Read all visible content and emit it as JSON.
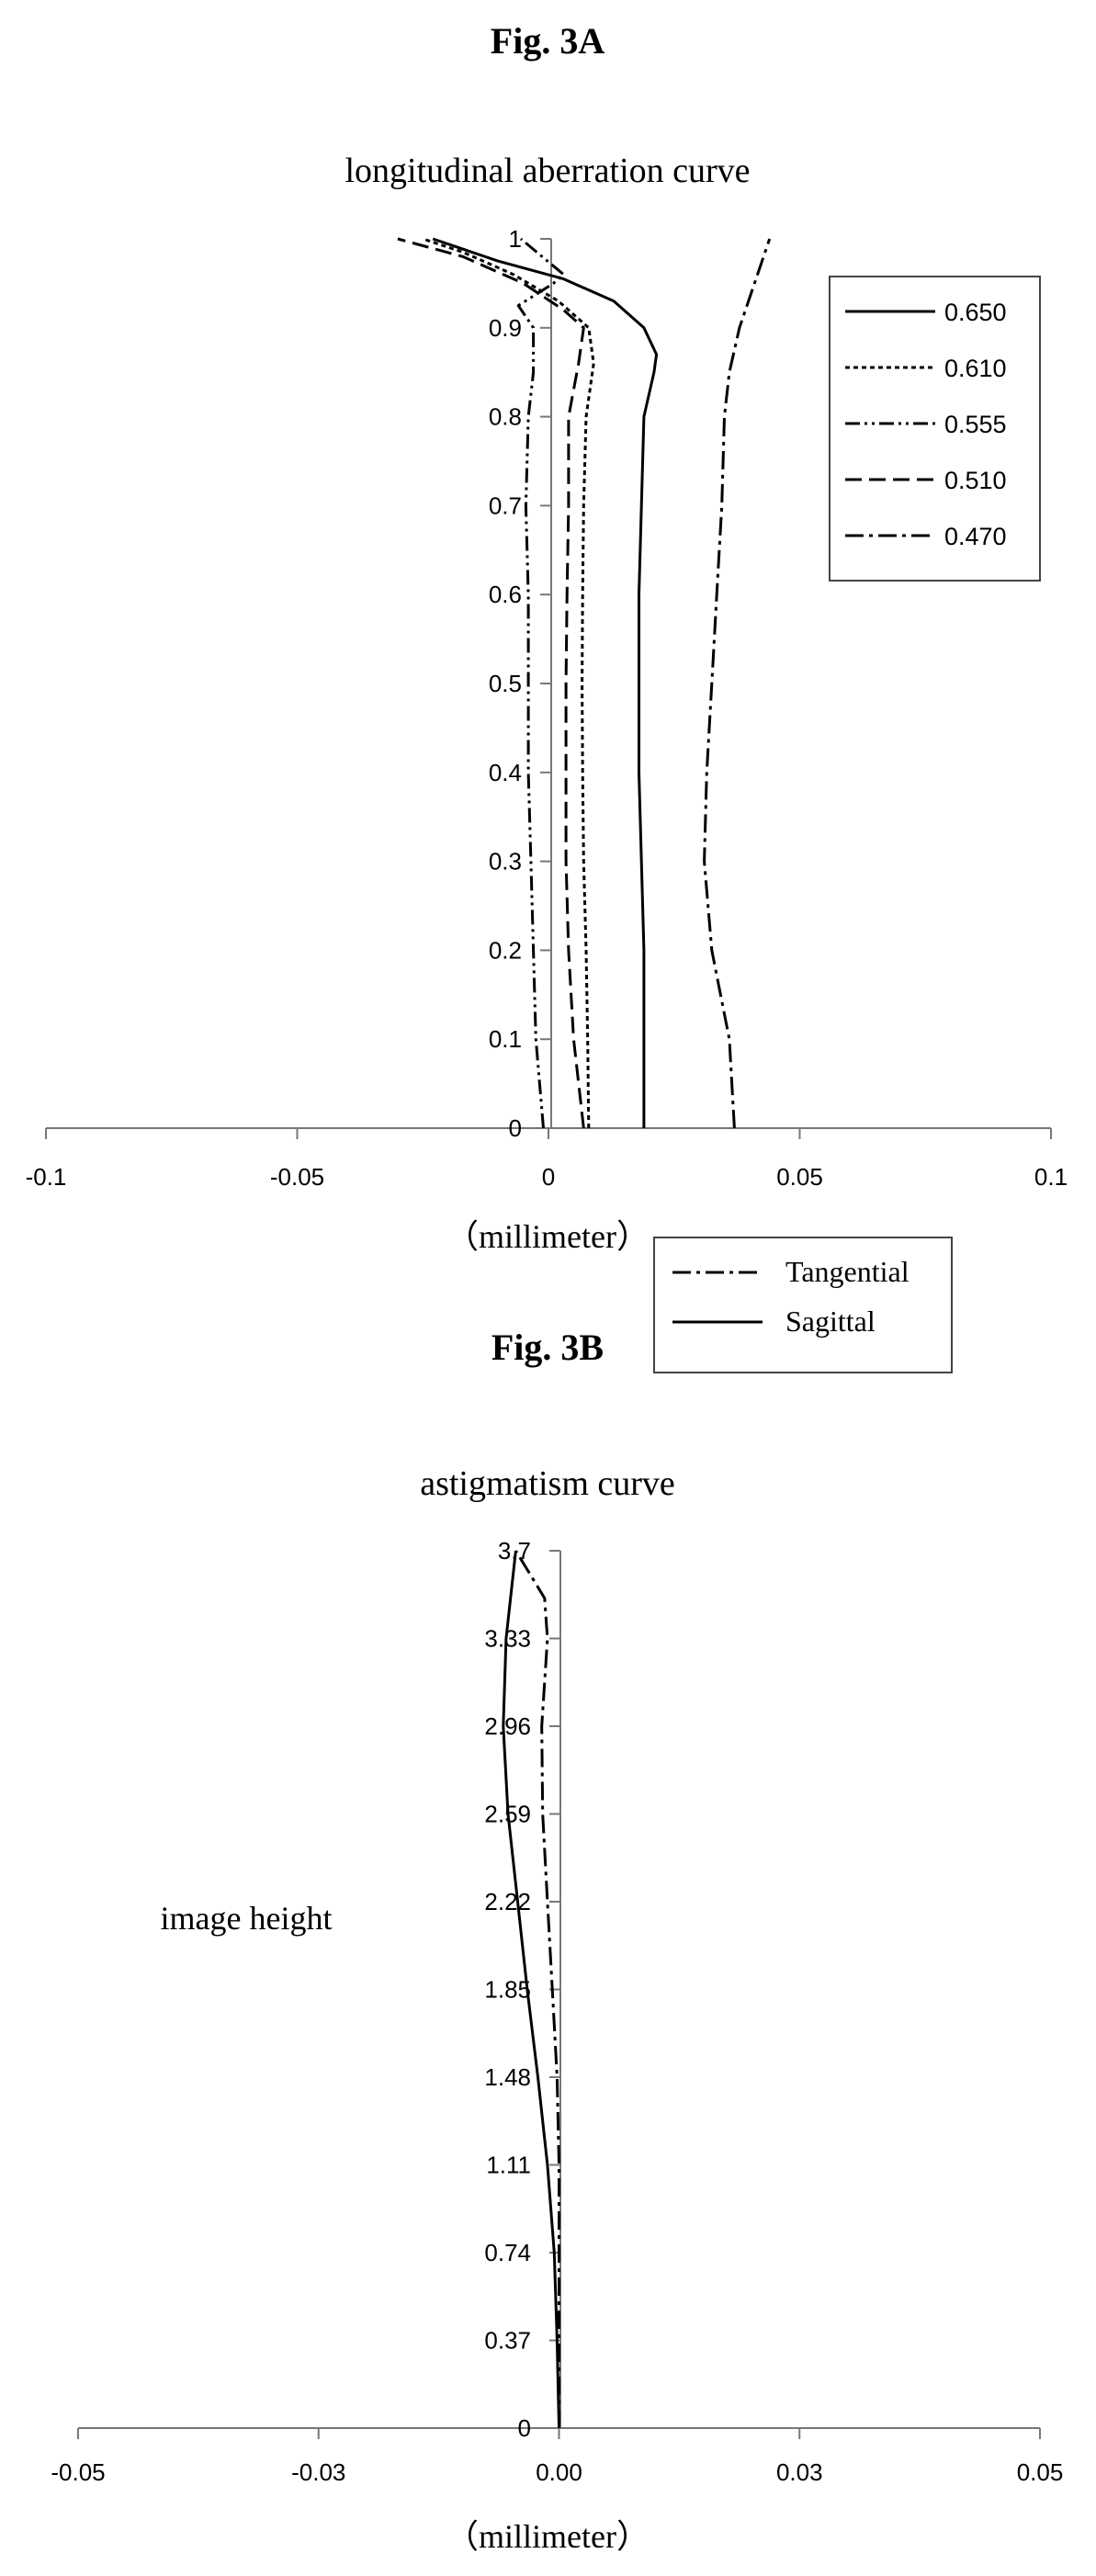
{
  "chart_data": [
    {
      "type": "line",
      "figure_label": "Fig. 3A",
      "title": "longitudinal aberration curve",
      "xlabel": "（millimeter）",
      "ylabel": "",
      "xlim": [
        -0.1,
        0.1
      ],
      "ylim": [
        0,
        1
      ],
      "xticks": [
        "-0.1",
        "-0.05",
        "0",
        "0.05",
        "0.1"
      ],
      "yticks": [
        "0",
        "0.1",
        "0.2",
        "0.3",
        "0.4",
        "0.5",
        "0.6",
        "0.7",
        "0.8",
        "0.9",
        "1"
      ],
      "grid": false,
      "legend_position": "top-right",
      "series": [
        {
          "name": "0.650",
          "style": "solid",
          "points": [
            [
              0.019,
              0
            ],
            [
              0.019,
              0.1
            ],
            [
              0.019,
              0.2
            ],
            [
              0.0185,
              0.3
            ],
            [
              0.018,
              0.4
            ],
            [
              0.018,
              0.5
            ],
            [
              0.018,
              0.6
            ],
            [
              0.0185,
              0.7
            ],
            [
              0.019,
              0.8
            ],
            [
              0.021,
              0.85
            ],
            [
              0.0215,
              0.87
            ],
            [
              0.019,
              0.9
            ],
            [
              0.013,
              0.93
            ],
            [
              0.003,
              0.955
            ],
            [
              -0.01,
              0.975
            ],
            [
              -0.023,
              1.0
            ]
          ]
        },
        {
          "name": "0.610",
          "style": "dotted",
          "points": [
            [
              0.008,
              0
            ],
            [
              0.0078,
              0.1
            ],
            [
              0.0075,
              0.2
            ],
            [
              0.007,
              0.3
            ],
            [
              0.0068,
              0.4
            ],
            [
              0.0067,
              0.5
            ],
            [
              0.0068,
              0.6
            ],
            [
              0.007,
              0.7
            ],
            [
              0.0075,
              0.8
            ],
            [
              0.009,
              0.86
            ],
            [
              0.008,
              0.9
            ],
            [
              0.002,
              0.93
            ],
            [
              -0.007,
              0.96
            ],
            [
              -0.017,
              0.985
            ],
            [
              -0.025,
              1.0
            ]
          ]
        },
        {
          "name": "0.555",
          "style": "dashdotdot",
          "points": [
            [
              -0.001,
              0
            ],
            [
              -0.0025,
              0.1
            ],
            [
              -0.003,
              0.2
            ],
            [
              -0.0035,
              0.3
            ],
            [
              -0.004,
              0.4
            ],
            [
              -0.004,
              0.5
            ],
            [
              -0.004,
              0.6
            ],
            [
              -0.0045,
              0.7
            ],
            [
              -0.004,
              0.8
            ],
            [
              -0.003,
              0.85
            ],
            [
              -0.003,
              0.9
            ],
            [
              -0.006,
              0.925
            ],
            [
              0.001,
              0.95
            ],
            [
              0.003,
              0.96
            ],
            [
              -0.0055,
              1.0
            ]
          ]
        },
        {
          "name": "0.510",
          "style": "dashed",
          "points": [
            [
              0.007,
              0
            ],
            [
              0.005,
              0.1
            ],
            [
              0.004,
              0.2
            ],
            [
              0.0035,
              0.3
            ],
            [
              0.0035,
              0.4
            ],
            [
              0.0035,
              0.5
            ],
            [
              0.0037,
              0.6
            ],
            [
              0.004,
              0.7
            ],
            [
              0.004,
              0.8
            ],
            [
              0.006,
              0.86
            ],
            [
              0.007,
              0.9
            ],
            [
              0.003,
              0.92
            ],
            [
              -0.005,
              0.95
            ],
            [
              -0.017,
              0.98
            ],
            [
              -0.03,
              1.0
            ]
          ]
        },
        {
          "name": "0.470",
          "style": "dashdot",
          "points": [
            [
              0.037,
              0
            ],
            [
              0.036,
              0.1
            ],
            [
              0.0325,
              0.2
            ],
            [
              0.031,
              0.3
            ],
            [
              0.0315,
              0.4
            ],
            [
              0.0325,
              0.5
            ],
            [
              0.0335,
              0.6
            ],
            [
              0.0345,
              0.7
            ],
            [
              0.035,
              0.8
            ],
            [
              0.036,
              0.85
            ],
            [
              0.038,
              0.9
            ],
            [
              0.041,
              0.95
            ],
            [
              0.044,
              1.0
            ]
          ]
        }
      ]
    },
    {
      "type": "line",
      "figure_label": "Fig. 3B",
      "title": "astigmatism curve",
      "xlabel": "（millimeter）",
      "ylabel": "image height",
      "xlim": [
        -0.05,
        0.05
      ],
      "ylim": [
        0,
        3.7
      ],
      "xticks": [
        "-0.05",
        "-0.03",
        "0.00",
        "0.03",
        "0.05"
      ],
      "yticks": [
        "0",
        "0.37",
        "0.74",
        "1.11",
        "1.48",
        "1.85",
        "2.22",
        "2.59",
        "2.96",
        "3.33",
        "3.7"
      ],
      "grid": false,
      "legend_position": "top-right",
      "series": [
        {
          "name": "Tangential",
          "style": "dashdot",
          "points": [
            [
              0,
              0
            ],
            [
              0,
              0.37
            ],
            [
              0,
              0.74
            ],
            [
              0,
              1.11
            ],
            [
              -0.0002,
              1.48
            ],
            [
              -0.0007,
              1.85
            ],
            [
              -0.0012,
              2.22
            ],
            [
              -0.0017,
              2.59
            ],
            [
              -0.0018,
              2.96
            ],
            [
              -0.0012,
              3.33
            ],
            [
              -0.0015,
              3.5
            ],
            [
              -0.0045,
              3.7
            ]
          ]
        },
        {
          "name": "Sagittal",
          "style": "solid",
          "points": [
            [
              0,
              0
            ],
            [
              -0.0002,
              0.37
            ],
            [
              -0.0005,
              0.74
            ],
            [
              -0.0012,
              1.11
            ],
            [
              -0.0022,
              1.48
            ],
            [
              -0.0033,
              1.85
            ],
            [
              -0.0043,
              2.22
            ],
            [
              -0.0053,
              2.59
            ],
            [
              -0.0058,
              2.96
            ],
            [
              -0.0055,
              3.33
            ],
            [
              -0.0045,
              3.7
            ]
          ]
        }
      ]
    }
  ]
}
